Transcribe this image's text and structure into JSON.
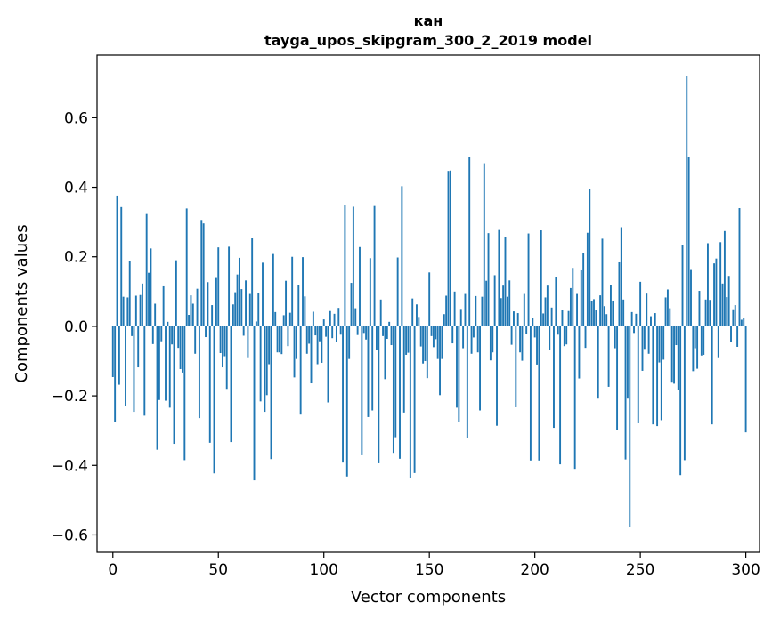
{
  "chart_data": {
    "type": "bar",
    "title": "кан",
    "subtitle": "tayga_upos_skipgram_300_2_2019 model",
    "xlabel": "Vector components",
    "ylabel": "Components values",
    "xlim": [
      -7.5,
      306.5
    ],
    "ylim": [
      -0.65,
      0.78
    ],
    "xticks": [
      0,
      50,
      100,
      150,
      200,
      250,
      300
    ],
    "xtick_labels": [
      "0",
      "50",
      "100",
      "150",
      "200",
      "250",
      "300"
    ],
    "yticks": [
      -0.6,
      -0.4,
      -0.2,
      0.0,
      0.2,
      0.4,
      0.6
    ],
    "ytick_labels": [
      "−0.6",
      "−0.4",
      "−0.2",
      "0.0",
      "0.2",
      "0.4",
      "0.6"
    ],
    "bar_color": "#1f77b4",
    "values": [
      -0.146,
      -0.275,
      0.376,
      -0.168,
      0.343,
      0.085,
      -0.229,
      0.083,
      0.187,
      -0.028,
      -0.246,
      0.088,
      -0.118,
      0.09,
      0.123,
      -0.257,
      0.323,
      0.154,
      0.224,
      -0.051,
      0.065,
      -0.355,
      -0.212,
      -0.043,
      0.115,
      -0.214,
      0.013,
      -0.234,
      -0.052,
      -0.338,
      0.19,
      -0.062,
      -0.123,
      -0.133,
      -0.385,
      0.339,
      0.033,
      0.089,
      0.065,
      -0.079,
      0.108,
      -0.264,
      0.306,
      0.296,
      -0.031,
      0.127,
      -0.335,
      0.061,
      -0.423,
      0.139,
      0.227,
      -0.077,
      -0.118,
      -0.086,
      -0.18,
      0.229,
      -0.333,
      0.063,
      0.098,
      0.149,
      0.197,
      0.107,
      -0.027,
      0.132,
      -0.089,
      0.093,
      0.253,
      -0.443,
      0.014,
      0.097,
      -0.216,
      0.183,
      -0.246,
      -0.198,
      -0.109,
      -0.382,
      0.208,
      0.041,
      -0.075,
      -0.075,
      -0.08,
      0.032,
      0.131,
      -0.057,
      0.039,
      0.2,
      -0.147,
      -0.094,
      0.119,
      -0.254,
      0.199,
      0.086,
      -0.079,
      -0.05,
      -0.164,
      0.042,
      -0.026,
      -0.109,
      -0.043,
      -0.105,
      0.02,
      -0.03,
      -0.219,
      0.044,
      -0.034,
      0.036,
      -0.044,
      0.053,
      -0.024,
      -0.392,
      0.349,
      -0.432,
      -0.094,
      0.125,
      0.344,
      0.052,
      -0.025,
      0.228,
      -0.371,
      -0.019,
      -0.038,
      -0.261,
      0.196,
      -0.242,
      0.346,
      -0.067,
      -0.394,
      0.077,
      -0.028,
      -0.152,
      -0.036,
      0.013,
      -0.054,
      -0.364,
      -0.319,
      0.198,
      -0.381,
      0.403,
      -0.248,
      -0.082,
      -0.076,
      -0.436,
      0.08,
      -0.422,
      0.063,
      0.027,
      -0.058,
      -0.107,
      -0.1,
      -0.149,
      0.155,
      -0.028,
      -0.06,
      -0.037,
      -0.094,
      -0.198,
      -0.094,
      0.035,
      0.088,
      0.447,
      0.448,
      -0.049,
      0.1,
      -0.234,
      -0.274,
      0.05,
      -0.063,
      0.093,
      -0.322,
      0.486,
      -0.079,
      -0.032,
      0.087,
      -0.075,
      -0.242,
      0.085,
      0.469,
      0.131,
      0.268,
      -0.098,
      -0.075,
      0.147,
      -0.286,
      0.277,
      0.081,
      0.117,
      0.257,
      0.085,
      0.132,
      -0.053,
      0.043,
      -0.233,
      0.038,
      -0.075,
      -0.099,
      0.093,
      -0.022,
      0.267,
      -0.386,
      0.023,
      -0.032,
      -0.11,
      -0.386,
      0.276,
      0.037,
      0.083,
      0.117,
      -0.068,
      0.054,
      -0.292,
      0.143,
      -0.024,
      -0.397,
      0.046,
      -0.057,
      -0.052,
      0.044,
      0.11,
      0.168,
      -0.41,
      0.093,
      -0.15,
      0.161,
      0.212,
      -0.062,
      0.269,
      0.396,
      0.072,
      0.078,
      0.048,
      -0.208,
      0.089,
      0.252,
      0.058,
      0.035,
      -0.174,
      0.119,
      0.074,
      -0.063,
      -0.298,
      0.184,
      0.285,
      0.077,
      -0.383,
      -0.208,
      -0.577,
      0.041,
      -0.019,
      0.036,
      -0.279,
      0.128,
      -0.128,
      -0.065,
      0.094,
      -0.079,
      0.029,
      -0.282,
      0.038,
      -0.287,
      -0.104,
      -0.27,
      -0.096,
      0.083,
      0.106,
      0.052,
      -0.162,
      -0.165,
      -0.054,
      -0.182,
      -0.428,
      0.234,
      -0.385,
      0.719,
      0.486,
      0.162,
      -0.129,
      -0.063,
      -0.122,
      0.102,
      -0.084,
      -0.082,
      0.077,
      0.239,
      0.076,
      -0.282,
      0.181,
      0.195,
      -0.089,
      0.242,
      0.123,
      0.274,
      0.084,
      0.145,
      -0.046,
      0.049,
      0.061,
      -0.059,
      0.34,
      0.019,
      0.025,
      -0.305
    ]
  }
}
